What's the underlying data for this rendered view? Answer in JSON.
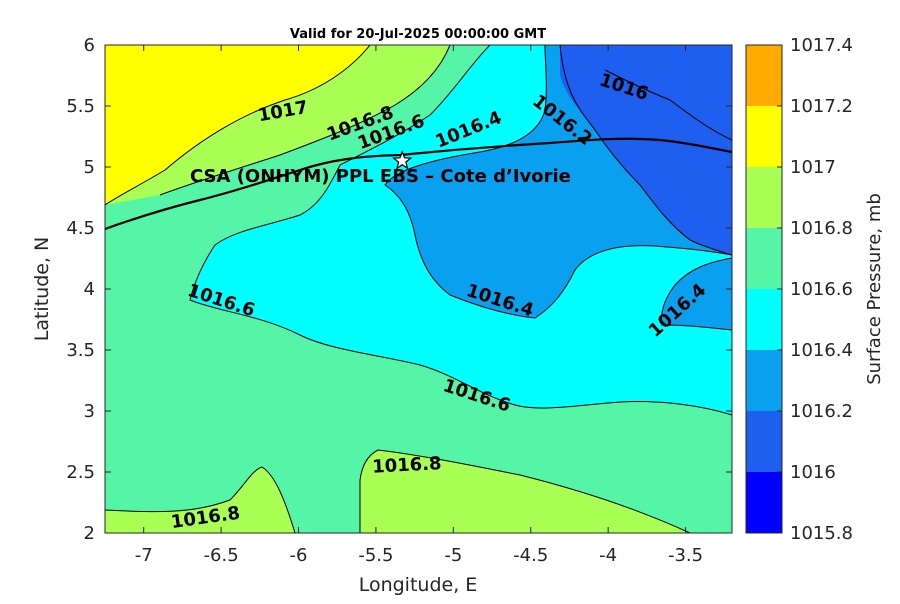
{
  "title": "Valid for 20-Jul-2025 00:00:00 GMT",
  "x_axis": {
    "label": "Longitude, E",
    "range": [
      -7.25,
      -3.2
    ],
    "ticks": [
      -7,
      -6.5,
      -6,
      -5.5,
      -5,
      -4.5,
      -4,
      -3.5
    ],
    "tick_labels": [
      "-7",
      "-6.5",
      "-6",
      "-5.5",
      "-5",
      "-4.5",
      "-4",
      "-3.5"
    ]
  },
  "y_axis": {
    "label": "Latitude, N",
    "range": [
      2,
      6
    ],
    "ticks": [
      2,
      2.5,
      3,
      3.5,
      4,
      4.5,
      5,
      5.5,
      6
    ],
    "tick_labels": [
      "2",
      "2.5",
      "3",
      "3.5",
      "4",
      "4.5",
      "5",
      "5.5",
      "6"
    ]
  },
  "colorbar": {
    "label": "Surface Pressure, mb",
    "levels": [
      1015.8,
      1016,
      1016.2,
      1016.4,
      1016.6,
      1016.8,
      1017,
      1017.2,
      1017.4
    ],
    "tick_labels": [
      "1015.8",
      "1016",
      "1016.2",
      "1016.4",
      "1016.6",
      "1016.8",
      "1017",
      "1017.2",
      "1017.4"
    ],
    "colors": [
      "#0000ff",
      "#1f5ff0",
      "#0aa0f0",
      "#00ffff",
      "#55f5a8",
      "#aaff55",
      "#ffff00",
      "#ffaa00",
      "#ff5500"
    ]
  },
  "fill_colors": {
    "c1016_0": "#1f5ff0",
    "c1016_2": "#0aa0f0",
    "c1016_4": "#00ffff",
    "c1016_6": "#55f5a8",
    "c1016_8": "#aaff55",
    "c1017_0": "#ffff00"
  },
  "site": {
    "name": "CSA (ONHYM) PPL EBS  – Cote d’Ivorie",
    "lon": -5.33,
    "lat": 5.05
  },
  "contour_labels": [
    {
      "text": "1017",
      "lon": -6.1,
      "lat": 5.45,
      "angle": -10
    },
    {
      "text": "1016.8",
      "lon": -5.6,
      "lat": 5.35,
      "angle": -20
    },
    {
      "text": "1016.6",
      "lon": -5.4,
      "lat": 5.28,
      "angle": -20
    },
    {
      "text": "1016.4",
      "lon": -4.9,
      "lat": 5.3,
      "angle": -22
    },
    {
      "text": "1016.2",
      "lon": -4.3,
      "lat": 5.38,
      "angle": 38
    },
    {
      "text": "1016",
      "lon": -3.9,
      "lat": 5.65,
      "angle": 18
    },
    {
      "text": "1016.4",
      "lon": -3.55,
      "lat": 3.82,
      "angle": -42
    },
    {
      "text": "1016.4",
      "lon": -4.7,
      "lat": 3.9,
      "angle": 18
    },
    {
      "text": "1016.6",
      "lon": -6.5,
      "lat": 3.9,
      "angle": 18
    },
    {
      "text": "1016.6",
      "lon": -4.85,
      "lat": 3.12,
      "angle": 18
    },
    {
      "text": "1016.8",
      "lon": -5.3,
      "lat": 2.55,
      "angle": -3
    },
    {
      "text": "1016.8",
      "lon": -6.6,
      "lat": 2.12,
      "angle": -8
    }
  ]
}
